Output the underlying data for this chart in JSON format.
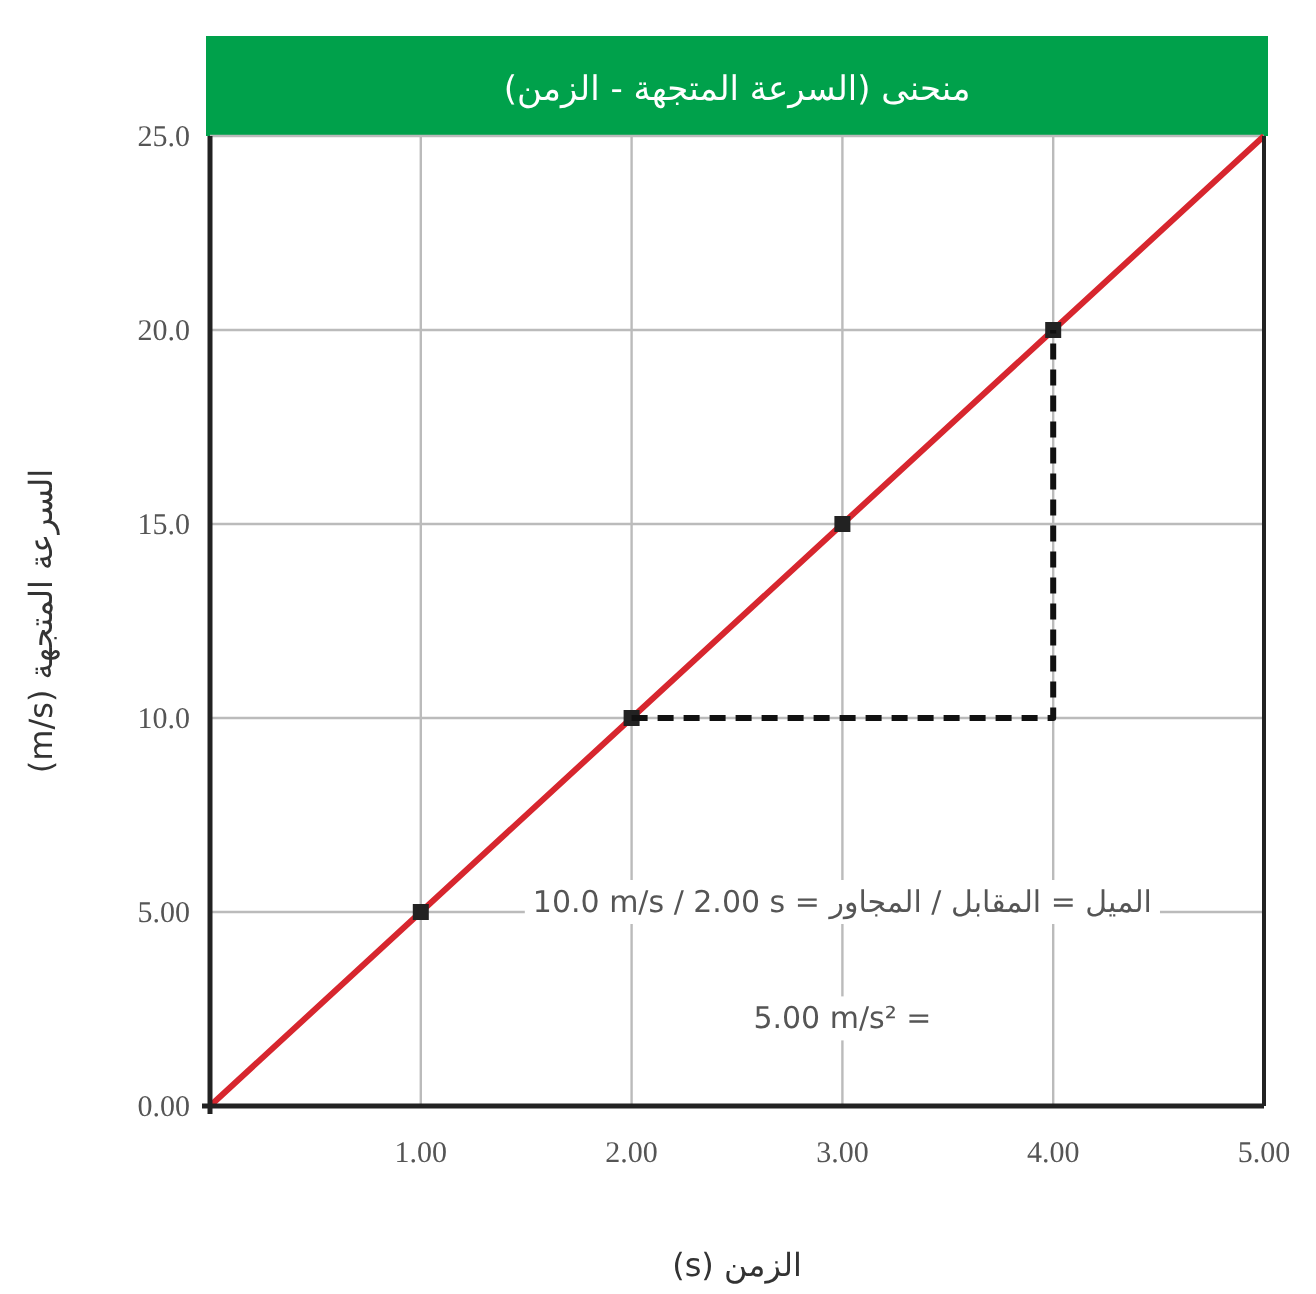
{
  "chart_data": {
    "type": "line",
    "title": "منحنى (السرعة المتجهة - الزمن)",
    "xlabel": "الزمن (s)",
    "ylabel": "السرعة المتجهة (m/s)",
    "xlim": [
      0,
      5
    ],
    "ylim": [
      0,
      25
    ],
    "xticks": [
      {
        "value": 0,
        "label": null
      },
      {
        "value": 1,
        "label": "1.00"
      },
      {
        "value": 2,
        "label": "2.00"
      },
      {
        "value": 3,
        "label": "3.00"
      },
      {
        "value": 4,
        "label": "4.00"
      },
      {
        "value": 5,
        "label": "5.00"
      }
    ],
    "yticks": [
      {
        "value": 0,
        "label": "0.00"
      },
      {
        "value": 5,
        "label": "5.00"
      },
      {
        "value": 10,
        "label": "10.0"
      },
      {
        "value": 15,
        "label": "15.0"
      },
      {
        "value": 20,
        "label": "20.0"
      },
      {
        "value": 25,
        "label": "25.0"
      }
    ],
    "grid": true,
    "series": [
      {
        "color": "#d7262e",
        "x": [
          0,
          1,
          2,
          3,
          4,
          5
        ],
        "values": [
          0,
          5,
          10,
          15,
          20,
          25
        ],
        "marker": "none",
        "line_style": "solid"
      },
      {
        "type": "scatter",
        "color": "#222222",
        "x": [
          1,
          2,
          3,
          4
        ],
        "values": [
          5,
          10,
          15,
          20
        ],
        "marker": "square"
      },
      {
        "color": "#111111",
        "x": [
          2,
          4,
          4
        ],
        "values": [
          10,
          10,
          20
        ],
        "marker": "none",
        "line_style": "dashed"
      }
    ],
    "annotations": [
      "الميل = المقابل / المجاور = 10.0 m/s / 2.00 s",
      "= 5.00 m/s²"
    ]
  }
}
